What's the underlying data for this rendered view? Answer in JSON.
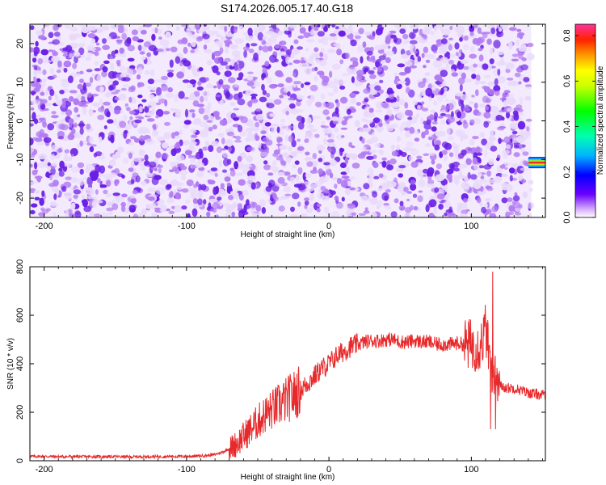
{
  "title": "S174.2026.005.17.40.G18",
  "chart_data": [
    {
      "type": "heatmap",
      "xlabel": "Height of straight line (km)",
      "ylabel": "Frequency (Hz)",
      "xlim": [
        -210,
        152
      ],
      "ylim": [
        -25,
        25
      ],
      "xticks": [
        -200,
        -100,
        0,
        100
      ],
      "yticks": [
        -20,
        -10,
        0,
        10,
        20
      ],
      "data_extent_x": [
        -210,
        142
      ],
      "peak": {
        "x_range": [
          140,
          152
        ],
        "frequency": -10.8
      },
      "colorbar": {
        "label": "Normalized spectral amplitude",
        "range": [
          0,
          0.85
        ],
        "ticks": [
          0,
          0.2,
          0.4,
          0.6,
          0.8
        ]
      },
      "colors": {
        "low": "#e8d9fa",
        "mid": "#b27bf2",
        "high": "#6a1ee6"
      }
    },
    {
      "type": "line",
      "xlabel": "Height of straight line (km)",
      "ylabel": "SNR (10 * v/v)",
      "xlim": [
        -210,
        152
      ],
      "ylim": [
        0,
        800
      ],
      "xticks": [
        -200,
        -100,
        0,
        100
      ],
      "yticks": [
        0,
        200,
        400,
        600,
        800
      ],
      "color": "#e8292b",
      "x": [
        -210,
        -200,
        -190,
        -180,
        -170,
        -160,
        -150,
        -140,
        -130,
        -120,
        -110,
        -100,
        -90,
        -85,
        -80,
        -75,
        -70,
        -65,
        -60,
        -55,
        -50,
        -45,
        -40,
        -35,
        -30,
        -25,
        -20,
        -15,
        -10,
        -5,
        0,
        5,
        10,
        15,
        20,
        25,
        30,
        35,
        40,
        45,
        50,
        55,
        60,
        65,
        70,
        75,
        80,
        85,
        90,
        95,
        100,
        105,
        108,
        110,
        112,
        114,
        116,
        118,
        120,
        125,
        130,
        135,
        140,
        145,
        152
      ],
      "y": [
        18,
        18,
        17,
        17,
        17,
        17,
        17,
        16,
        17,
        17,
        18,
        18,
        20,
        22,
        26,
        35,
        50,
        70,
        100,
        130,
        160,
        190,
        210,
        230,
        250,
        270,
        290,
        320,
        350,
        380,
        400,
        430,
        450,
        470,
        480,
        490,
        495,
        495,
        500,
        500,
        490,
        490,
        495,
        490,
        490,
        480,
        480,
        480,
        485,
        480,
        480,
        470,
        500,
        550,
        450,
        380,
        350,
        320,
        310,
        300,
        300,
        290,
        280,
        275,
        270
      ]
    }
  ]
}
